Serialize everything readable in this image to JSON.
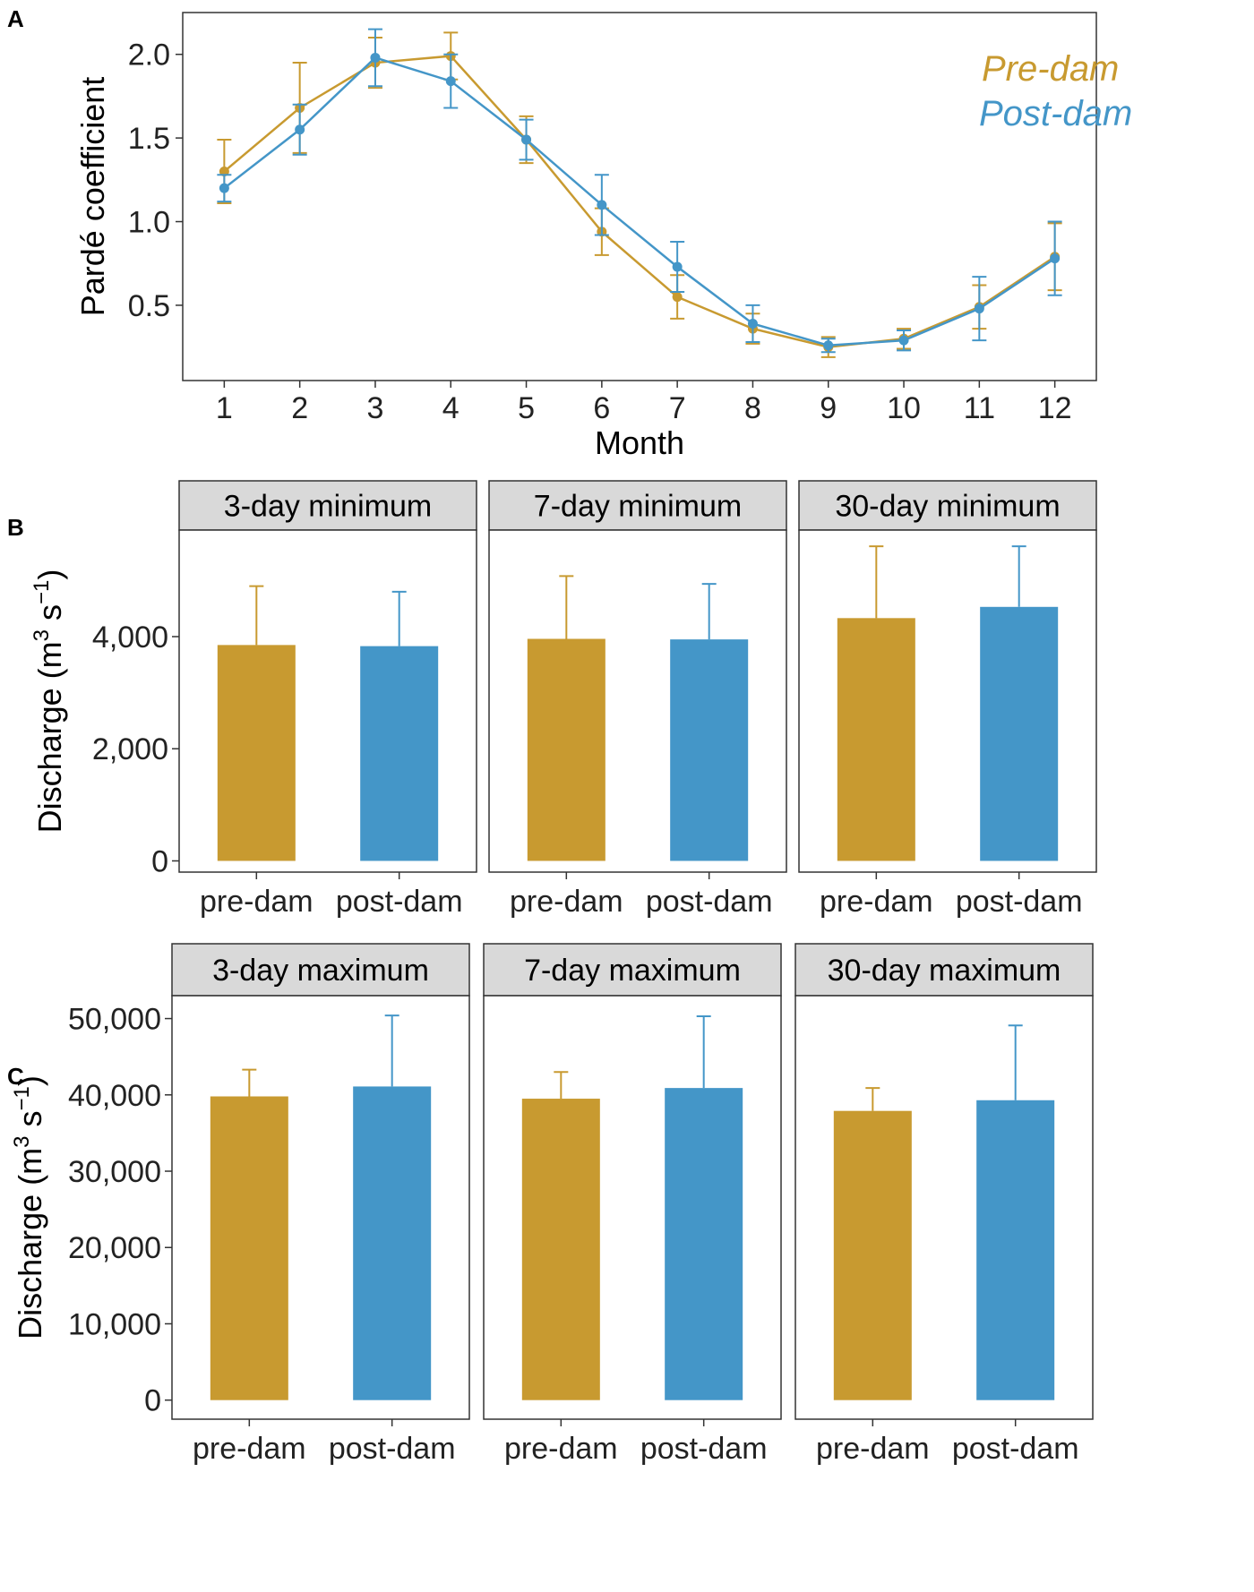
{
  "colors": {
    "pre": "#C89A30",
    "post": "#4496C8",
    "strip_bg": "#D9D9D9",
    "frame": "#333333"
  },
  "chart_data": [
    {
      "panel": "A",
      "type": "line",
      "xlabel": "Month",
      "ylabel": "Pardé coefficient",
      "x": [
        1,
        2,
        3,
        4,
        5,
        6,
        7,
        8,
        9,
        10,
        11,
        12
      ],
      "x_tick_labels": [
        "1",
        "2",
        "3",
        "4",
        "5",
        "6",
        "7",
        "8",
        "9",
        "10",
        "11",
        "12"
      ],
      "y_ticks": [
        0.5,
        1.0,
        1.5,
        2.0
      ],
      "y_tick_labels": [
        "0.5",
        "1.0",
        "1.5",
        "2.0"
      ],
      "ylim": [
        0.05,
        2.25
      ],
      "legend": [
        "Pre-dam",
        "Post-dam"
      ],
      "series": [
        {
          "name": "Pre-dam",
          "key": "pre",
          "values": [
            1.3,
            1.68,
            1.95,
            1.99,
            1.49,
            0.94,
            0.55,
            0.36,
            0.25,
            0.3,
            0.49,
            0.79
          ],
          "err": [
            0.19,
            0.27,
            0.15,
            0.14,
            0.14,
            0.14,
            0.13,
            0.09,
            0.06,
            0.06,
            0.13,
            0.2
          ]
        },
        {
          "name": "Post-dam",
          "key": "post",
          "values": [
            1.2,
            1.55,
            1.98,
            1.84,
            1.49,
            1.1,
            0.73,
            0.39,
            0.26,
            0.29,
            0.48,
            0.78
          ],
          "err": [
            0.08,
            0.15,
            0.17,
            0.16,
            0.12,
            0.18,
            0.15,
            0.11,
            0.04,
            0.06,
            0.19,
            0.22
          ]
        }
      ]
    },
    {
      "panel": "B",
      "type": "bar",
      "ylabel": "Discharge (m3 s-1)",
      "y_ticks": [
        0,
        2000,
        4000
      ],
      "y_tick_labels": [
        "0",
        "2,000",
        "4,000"
      ],
      "ylim": [
        -200,
        5900
      ],
      "categories": [
        "pre-dam",
        "post-dam"
      ],
      "facets": [
        {
          "title": "3-day minimum",
          "values": [
            3850,
            3830
          ],
          "err": [
            1050,
            970
          ]
        },
        {
          "title": "7-day minimum",
          "values": [
            3960,
            3950
          ],
          "err": [
            1120,
            990
          ]
        },
        {
          "title": "30-day minimum",
          "values": [
            4330,
            4530
          ],
          "err": [
            1280,
            1080
          ]
        }
      ]
    },
    {
      "panel": "C",
      "type": "bar",
      "ylabel": "Discharge (m3 s-1)",
      "y_ticks": [
        0,
        10000,
        20000,
        30000,
        40000,
        50000
      ],
      "y_tick_labels": [
        "0",
        "10,000",
        "20,000",
        "30,000",
        "40,000",
        "50,000"
      ],
      "ylim": [
        -2500,
        53000
      ],
      "categories": [
        "pre-dam",
        "post-dam"
      ],
      "facets": [
        {
          "title": "3-day maximum",
          "values": [
            39800,
            41100
          ],
          "err": [
            3500,
            9300
          ]
        },
        {
          "title": "7-day maximum",
          "values": [
            39500,
            40900
          ],
          "err": [
            3500,
            9400
          ]
        },
        {
          "title": "30-day maximum",
          "values": [
            37900,
            39300
          ],
          "err": [
            3000,
            9800
          ]
        }
      ]
    }
  ]
}
